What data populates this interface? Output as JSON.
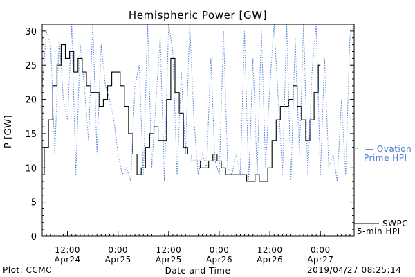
{
  "chart_data": {
    "type": "line",
    "title": "Hemispheric Power [GW]",
    "ylabel": "P [GW]",
    "xlabel": "Date and Time",
    "ylim": [
      0,
      31
    ],
    "yticks": [
      0,
      5,
      10,
      15,
      20,
      25,
      30
    ],
    "xlim": [
      "2019-04-24T06:00",
      "2019-04-27T08:00"
    ],
    "xticks": [
      {
        "time": "2019-04-24T12:00",
        "line1": "12:00",
        "line2": "Apr24"
      },
      {
        "time": "2019-04-25T00:00",
        "line1": "0:00",
        "line2": "Apr25"
      },
      {
        "time": "2019-04-25T12:00",
        "line1": "12:00",
        "line2": "Apr25"
      },
      {
        "time": "2019-04-26T00:00",
        "line1": "0:00",
        "line2": "Apr26"
      },
      {
        "time": "2019-04-26T12:00",
        "line1": "12:00",
        "line2": "Apr26"
      },
      {
        "time": "2019-04-27T00:00",
        "line1": "0:00",
        "line2": "Apr27"
      }
    ],
    "series": [
      {
        "name": "SWPC 5-min HPI",
        "legend_line1": "SWPC",
        "legend_line2": "5-min HPI",
        "color": "#000000",
        "style": "solid",
        "x": [
          "2019-04-24T06:00",
          "2019-04-24T07:00",
          "2019-04-24T08:00",
          "2019-04-24T09:00",
          "2019-04-24T10:00",
          "2019-04-24T11:00",
          "2019-04-24T12:00",
          "2019-04-24T13:00",
          "2019-04-24T14:00",
          "2019-04-24T15:00",
          "2019-04-24T16:00",
          "2019-04-24T17:00",
          "2019-04-24T18:00",
          "2019-04-24T19:00",
          "2019-04-24T20:00",
          "2019-04-24T21:00",
          "2019-04-24T22:00",
          "2019-04-24T23:00",
          "2019-04-25T00:00",
          "2019-04-25T01:00",
          "2019-04-25T02:00",
          "2019-04-25T03:00",
          "2019-04-25T04:00",
          "2019-04-25T05:00",
          "2019-04-25T06:00",
          "2019-04-25T07:00",
          "2019-04-25T08:00",
          "2019-04-25T09:00",
          "2019-04-25T10:00",
          "2019-04-25T11:00",
          "2019-04-25T12:00",
          "2019-04-25T13:00",
          "2019-04-25T14:00",
          "2019-04-25T15:00",
          "2019-04-25T16:00",
          "2019-04-25T17:00",
          "2019-04-25T18:00",
          "2019-04-25T19:00",
          "2019-04-25T20:00",
          "2019-04-25T21:00",
          "2019-04-25T22:00",
          "2019-04-25T23:00",
          "2019-04-26T00:00",
          "2019-04-26T01:00",
          "2019-04-26T02:00",
          "2019-04-26T03:00",
          "2019-04-26T04:00",
          "2019-04-26T05:00",
          "2019-04-26T06:00",
          "2019-04-26T07:00",
          "2019-04-26T08:00",
          "2019-04-26T09:00",
          "2019-04-26T10:00",
          "2019-04-26T11:00",
          "2019-04-26T12:00",
          "2019-04-26T13:00",
          "2019-04-26T14:00",
          "2019-04-26T15:00",
          "2019-04-26T16:00",
          "2019-04-26T17:00",
          "2019-04-26T18:00",
          "2019-04-26T19:00",
          "2019-04-26T20:00",
          "2019-04-26T21:00",
          "2019-04-26T22:00",
          "2019-04-26T23:00",
          "2019-04-27T00:00"
        ],
        "values": [
          9,
          13,
          17,
          22,
          25,
          28,
          26,
          27,
          24,
          26,
          24,
          22,
          21,
          21,
          19,
          20,
          22,
          24,
          24,
          22,
          19,
          15,
          12,
          9,
          10,
          13,
          15,
          16,
          14,
          14,
          20,
          26,
          21,
          18,
          13,
          12,
          11,
          11,
          10,
          10,
          11,
          12,
          11,
          10,
          9,
          9,
          9,
          9,
          9,
          8,
          8,
          9,
          8,
          8,
          10,
          14,
          17,
          19,
          19,
          20,
          22,
          19,
          17,
          14,
          17,
          21,
          25
        ]
      },
      {
        "name": "Ovation Prime HPI",
        "legend_line1": "— Ovation",
        "legend_line2": "Prime HPI",
        "color": "#4a7cd6",
        "style": "dotted",
        "x": [
          "2019-04-24T06:00",
          "2019-04-24T07:00",
          "2019-04-24T08:00",
          "2019-04-24T09:00",
          "2019-04-24T10:00",
          "2019-04-24T11:00",
          "2019-04-24T12:00",
          "2019-04-24T13:00",
          "2019-04-24T14:00",
          "2019-04-24T15:00",
          "2019-04-24T16:00",
          "2019-04-24T17:00",
          "2019-04-24T18:00",
          "2019-04-24T19:00",
          "2019-04-24T20:00",
          "2019-04-24T21:00",
          "2019-04-24T22:00",
          "2019-04-24T23:00",
          "2019-04-25T00:00",
          "2019-04-25T01:00",
          "2019-04-25T02:00",
          "2019-04-25T03:00",
          "2019-04-25T04:00",
          "2019-04-25T05:00",
          "2019-04-25T06:00",
          "2019-04-25T07:00",
          "2019-04-25T08:00",
          "2019-04-25T09:00",
          "2019-04-25T10:00",
          "2019-04-25T11:00",
          "2019-04-25T12:00",
          "2019-04-25T13:00",
          "2019-04-25T14:00",
          "2019-04-25T15:00",
          "2019-04-25T16:00",
          "2019-04-25T17:00",
          "2019-04-25T18:00",
          "2019-04-25T19:00",
          "2019-04-25T20:00",
          "2019-04-25T21:00",
          "2019-04-25T22:00",
          "2019-04-25T23:00",
          "2019-04-26T00:00",
          "2019-04-26T01:00",
          "2019-04-26T02:00",
          "2019-04-26T03:00",
          "2019-04-26T04:00",
          "2019-04-26T05:00",
          "2019-04-26T06:00",
          "2019-04-26T07:00",
          "2019-04-26T08:00",
          "2019-04-26T09:00",
          "2019-04-26T10:00",
          "2019-04-26T11:00",
          "2019-04-26T12:00",
          "2019-04-26T13:00",
          "2019-04-26T14:00",
          "2019-04-26T15:00",
          "2019-04-26T16:00",
          "2019-04-26T17:00",
          "2019-04-26T18:00",
          "2019-04-26T19:00",
          "2019-04-26T20:00",
          "2019-04-26T21:00",
          "2019-04-26T22:00",
          "2019-04-26T23:00",
          "2019-04-27T00:00",
          "2019-04-27T01:00",
          "2019-04-27T02:00",
          "2019-04-27T03:00",
          "2019-04-27T04:00",
          "2019-04-27T05:00",
          "2019-04-27T06:00",
          "2019-04-27T07:00",
          "2019-04-27T08:00"
        ],
        "values": [
          22,
          30,
          28,
          12,
          29,
          20,
          17,
          31,
          9,
          28,
          22,
          14,
          31,
          12,
          28,
          22,
          20,
          17,
          12,
          9,
          10,
          8,
          22,
          25,
          9,
          31,
          10,
          20,
          29,
          8,
          31,
          27,
          9,
          24,
          12,
          31,
          17,
          9,
          12,
          10,
          26,
          11,
          9,
          30,
          10,
          9,
          12,
          9,
          30,
          8,
          26,
          9,
          30,
          10,
          22,
          31,
          20,
          9,
          31,
          8,
          29,
          12,
          31,
          9,
          24,
          31,
          9,
          26,
          10,
          12,
          8,
          20,
          9,
          29,
          31
        ]
      }
    ],
    "footer_left": "Plot: CCMC",
    "footer_right": "2019/04/27 08:25:14"
  }
}
